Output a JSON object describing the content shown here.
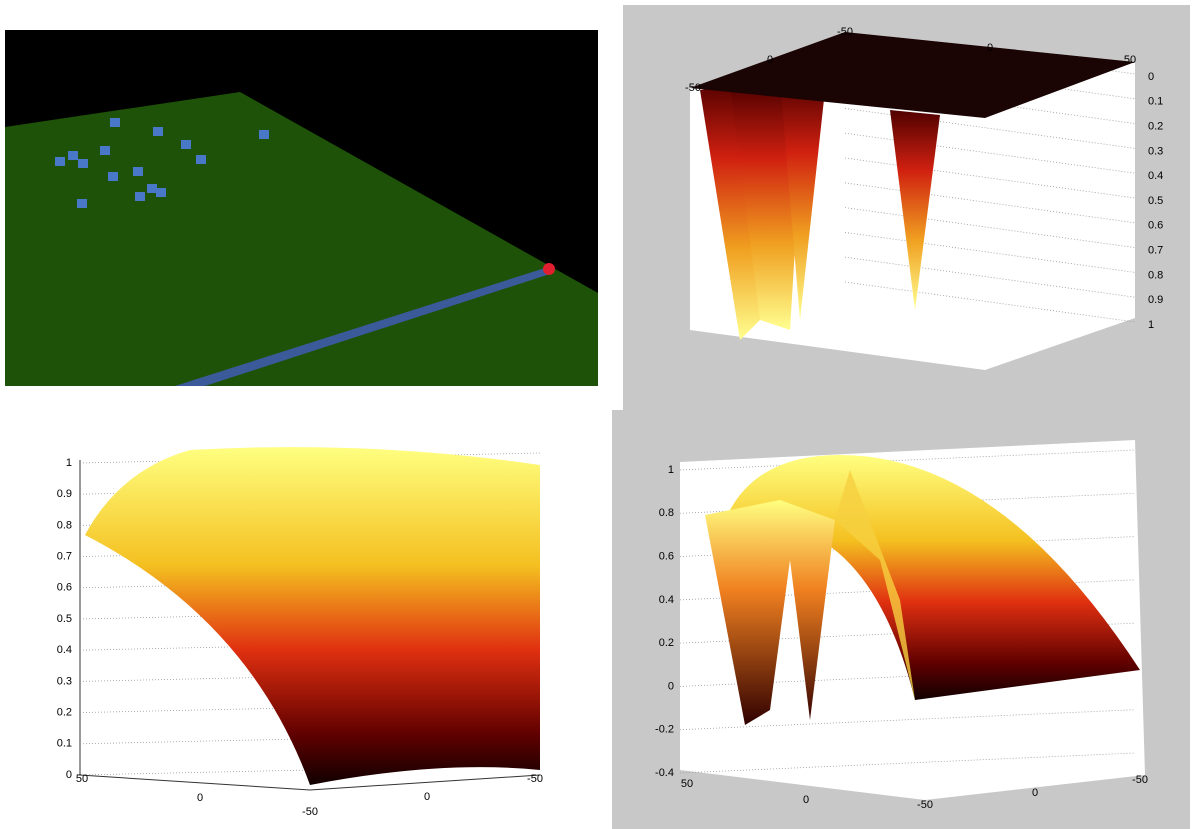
{
  "top_right_plot": {
    "z_ticks": [
      0,
      0.1,
      0.2,
      0.3,
      0.4,
      0.5,
      0.6,
      0.7,
      0.8,
      0.9,
      1
    ],
    "top_ticks": [
      -50,
      0,
      -50,
      0,
      50
    ]
  },
  "bottom_left_plot": {
    "z_ticks": [
      0,
      0.1,
      0.2,
      0.3,
      0.4,
      0.5,
      0.6,
      0.7,
      0.8,
      0.9,
      1
    ],
    "x_ticks": [
      50,
      0,
      -50,
      0,
      -50
    ]
  },
  "bottom_right_plot": {
    "z_ticks": [
      -0.4,
      -0.2,
      0,
      0.2,
      0.4,
      0.6,
      0.8,
      1
    ],
    "x_ticks": [
      50,
      0,
      -50,
      0,
      -50
    ]
  }
}
